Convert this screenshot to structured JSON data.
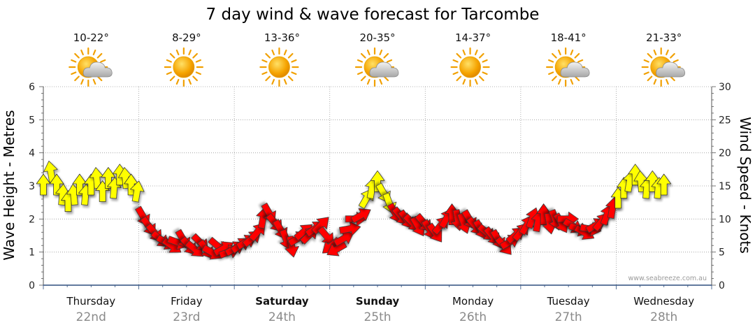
{
  "chart_data": {
    "type": "line",
    "title": "7 day wind & wave forecast for Tarcombe",
    "ylabel_left": "Wave Height - Metres",
    "ylabel_right": "Wind Speed - Knots",
    "y_left_range": [
      0,
      6
    ],
    "y_right_range": [
      0,
      30
    ],
    "y_left_ticks": [
      "0",
      "1",
      "2",
      "3",
      "4",
      "5",
      "6"
    ],
    "y_right_ticks": [
      "0",
      "5",
      "10",
      "15",
      "20",
      "25",
      "30"
    ],
    "grid": "dotted",
    "credit": "www.seabreeze.com.au",
    "days": [
      {
        "name": "Thursday",
        "date": "22nd",
        "bold": false,
        "temp": "10-22°",
        "icon": "sun-cloud-icon"
      },
      {
        "name": "Friday",
        "date": "23rd",
        "bold": false,
        "temp": "8-29°",
        "icon": "sun-icon"
      },
      {
        "name": "Saturday",
        "date": "24th",
        "bold": true,
        "temp": "13-36°",
        "icon": "sun-icon"
      },
      {
        "name": "Sunday",
        "date": "25th",
        "bold": true,
        "temp": "20-35°",
        "icon": "sun-cloud-icon"
      },
      {
        "name": "Monday",
        "date": "26th",
        "bold": false,
        "temp": "14-37°",
        "icon": "sun-icon"
      },
      {
        "name": "Tuesday",
        "date": "27th",
        "bold": false,
        "temp": "18-41°",
        "icon": "sun-cloud-icon"
      },
      {
        "name": "Wednesday",
        "date": "28th",
        "bold": false,
        "temp": "21-33°",
        "icon": "sun-cloud-icon"
      }
    ],
    "series": [
      {
        "name": "Wind Speed",
        "unit": "knots",
        "colors": {
          "light": "#ffff00",
          "strong": "#ff0000"
        },
        "points": [
          {
            "t": 0.0,
            "v": 15.0,
            "dir": 0
          },
          {
            "t": 0.08,
            "v": 17.0,
            "dir": -10
          },
          {
            "t": 0.14,
            "v": 15.0,
            "dir": 0
          },
          {
            "t": 0.2,
            "v": 13.5,
            "dir": 5
          },
          {
            "t": 0.26,
            "v": 12.5,
            "dir": 0
          },
          {
            "t": 0.32,
            "v": 13.5,
            "dir": -5
          },
          {
            "t": 0.38,
            "v": 15.0,
            "dir": 0
          },
          {
            "t": 0.44,
            "v": 13.5,
            "dir": 5
          },
          {
            "t": 0.5,
            "v": 15.0,
            "dir": 0
          },
          {
            "t": 0.56,
            "v": 16.0,
            "dir": -5
          },
          {
            "t": 0.62,
            "v": 14.0,
            "dir": 0
          },
          {
            "t": 0.68,
            "v": 16.0,
            "dir": 0
          },
          {
            "t": 0.74,
            "v": 14.5,
            "dir": 5
          },
          {
            "t": 0.8,
            "v": 16.5,
            "dir": 0
          },
          {
            "t": 0.86,
            "v": 16.0,
            "dir": -5
          },
          {
            "t": 0.92,
            "v": 15.0,
            "dir": 0
          },
          {
            "t": 0.98,
            "v": 14.0,
            "dir": 10
          },
          {
            "t": 1.04,
            "v": 10.5,
            "dir": 150
          },
          {
            "t": 1.1,
            "v": 9.0,
            "dir": 145
          },
          {
            "t": 1.16,
            "v": 8.0,
            "dir": 140
          },
          {
            "t": 1.22,
            "v": 7.0,
            "dir": 130
          },
          {
            "t": 1.28,
            "v": 6.5,
            "dir": 120
          },
          {
            "t": 1.34,
            "v": 6.0,
            "dir": 125
          },
          {
            "t": 1.4,
            "v": 6.5,
            "dir": 110
          },
          {
            "t": 1.46,
            "v": 7.0,
            "dir": 150
          },
          {
            "t": 1.52,
            "v": 6.0,
            "dir": 140
          },
          {
            "t": 1.58,
            "v": 5.5,
            "dir": 130
          },
          {
            "t": 1.64,
            "v": 6.5,
            "dir": 135
          },
          {
            "t": 1.7,
            "v": 5.5,
            "dir": 145
          },
          {
            "t": 1.76,
            "v": 5.0,
            "dir": 120
          },
          {
            "t": 1.82,
            "v": 6.0,
            "dir": 130
          },
          {
            "t": 1.88,
            "v": 5.5,
            "dir": 60
          },
          {
            "t": 1.94,
            "v": 5.0,
            "dir": 70
          },
          {
            "t": 2.0,
            "v": 5.5,
            "dir": 60
          },
          {
            "t": 2.06,
            "v": 6.0,
            "dir": 55
          },
          {
            "t": 2.12,
            "v": 6.5,
            "dir": 60
          },
          {
            "t": 2.18,
            "v": 7.0,
            "dir": 50
          },
          {
            "t": 2.24,
            "v": 8.0,
            "dir": 40
          },
          {
            "t": 2.3,
            "v": 10.0,
            "dir": 10
          },
          {
            "t": 2.36,
            "v": 11.0,
            "dir": 150
          },
          {
            "t": 2.42,
            "v": 9.5,
            "dir": 140
          },
          {
            "t": 2.48,
            "v": 8.5,
            "dir": 150
          },
          {
            "t": 2.54,
            "v": 7.0,
            "dir": 160
          },
          {
            "t": 2.6,
            "v": 6.0,
            "dir": 170
          },
          {
            "t": 2.66,
            "v": 7.0,
            "dir": 60
          },
          {
            "t": 2.72,
            "v": 8.0,
            "dir": 50
          },
          {
            "t": 2.78,
            "v": 7.5,
            "dir": 45
          },
          {
            "t": 2.84,
            "v": 8.5,
            "dir": 55
          },
          {
            "t": 2.9,
            "v": 9.0,
            "dir": 45
          },
          {
            "t": 2.96,
            "v": 7.5,
            "dir": 140
          },
          {
            "t": 3.02,
            "v": 6.0,
            "dir": 230
          },
          {
            "t": 3.08,
            "v": 5.5,
            "dir": 240
          },
          {
            "t": 3.14,
            "v": 7.0,
            "dir": 60
          },
          {
            "t": 3.2,
            "v": 8.5,
            "dir": 80
          },
          {
            "t": 3.26,
            "v": 10.0,
            "dir": 90
          },
          {
            "t": 3.32,
            "v": 10.5,
            "dir": 60
          },
          {
            "t": 3.38,
            "v": 13.0,
            "dir": 30
          },
          {
            "t": 3.44,
            "v": 14.5,
            "dir": 10
          },
          {
            "t": 3.5,
            "v": 15.5,
            "dir": 0
          },
          {
            "t": 3.56,
            "v": 14.0,
            "dir": 150
          },
          {
            "t": 3.62,
            "v": 12.5,
            "dir": 160
          },
          {
            "t": 3.68,
            "v": 11.0,
            "dir": 150
          },
          {
            "t": 3.74,
            "v": 10.5,
            "dir": 140
          },
          {
            "t": 3.8,
            "v": 10.0,
            "dir": 145
          },
          {
            "t": 3.86,
            "v": 9.5,
            "dir": 135
          },
          {
            "t": 3.92,
            "v": 9.0,
            "dir": 150
          },
          {
            "t": 3.98,
            "v": 9.5,
            "dir": 140
          },
          {
            "t": 4.04,
            "v": 8.5,
            "dir": 150
          },
          {
            "t": 4.1,
            "v": 8.0,
            "dir": 145
          },
          {
            "t": 4.16,
            "v": 9.0,
            "dir": 40
          },
          {
            "t": 4.22,
            "v": 10.0,
            "dir": 30
          },
          {
            "t": 4.28,
            "v": 10.5,
            "dir": 0
          },
          {
            "t": 4.34,
            "v": 10.0,
            "dir": 170
          },
          {
            "t": 4.4,
            "v": 9.5,
            "dir": 160
          },
          {
            "t": 4.46,
            "v": 10.0,
            "dir": 150
          },
          {
            "t": 4.52,
            "v": 9.0,
            "dir": 140
          },
          {
            "t": 4.58,
            "v": 8.5,
            "dir": 150
          },
          {
            "t": 4.64,
            "v": 8.0,
            "dir": 130
          },
          {
            "t": 4.7,
            "v": 7.5,
            "dir": 140
          },
          {
            "t": 4.76,
            "v": 7.0,
            "dir": 150
          },
          {
            "t": 4.82,
            "v": 6.0,
            "dir": 140
          },
          {
            "t": 4.88,
            "v": 6.5,
            "dir": 60
          },
          {
            "t": 4.94,
            "v": 7.5,
            "dir": 50
          },
          {
            "t": 5.0,
            "v": 8.0,
            "dir": 40
          },
          {
            "t": 5.06,
            "v": 9.0,
            "dir": 30
          },
          {
            "t": 5.12,
            "v": 10.0,
            "dir": 20
          },
          {
            "t": 5.18,
            "v": 9.5,
            "dir": 10
          },
          {
            "t": 5.24,
            "v": 10.5,
            "dir": 0
          },
          {
            "t": 5.3,
            "v": 9.5,
            "dir": 170
          },
          {
            "t": 5.36,
            "v": 10.0,
            "dir": 160
          },
          {
            "t": 5.42,
            "v": 9.5,
            "dir": 150
          },
          {
            "t": 5.48,
            "v": 10.0,
            "dir": 90
          },
          {
            "t": 5.54,
            "v": 9.0,
            "dir": 120
          },
          {
            "t": 5.6,
            "v": 8.5,
            "dir": 110
          },
          {
            "t": 5.66,
            "v": 8.0,
            "dir": 120
          },
          {
            "t": 5.72,
            "v": 8.5,
            "dir": 100
          },
          {
            "t": 5.78,
            "v": 9.0,
            "dir": 60
          },
          {
            "t": 5.84,
            "v": 9.5,
            "dir": 40
          },
          {
            "t": 5.9,
            "v": 10.5,
            "dir": 20
          },
          {
            "t": 5.96,
            "v": 11.5,
            "dir": 10
          },
          {
            "t": 6.02,
            "v": 13.0,
            "dir": 0
          },
          {
            "t": 6.08,
            "v": 14.5,
            "dir": 0
          },
          {
            "t": 6.14,
            "v": 15.5,
            "dir": 10
          },
          {
            "t": 6.2,
            "v": 16.5,
            "dir": 0
          },
          {
            "t": 6.26,
            "v": 15.5,
            "dir": -5
          },
          {
            "t": 6.32,
            "v": 14.5,
            "dir": 5
          },
          {
            "t": 6.38,
            "v": 15.5,
            "dir": 0
          },
          {
            "t": 6.44,
            "v": 14.5,
            "dir": 5
          },
          {
            "t": 6.5,
            "v": 15.0,
            "dir": 0
          }
        ]
      }
    ]
  }
}
